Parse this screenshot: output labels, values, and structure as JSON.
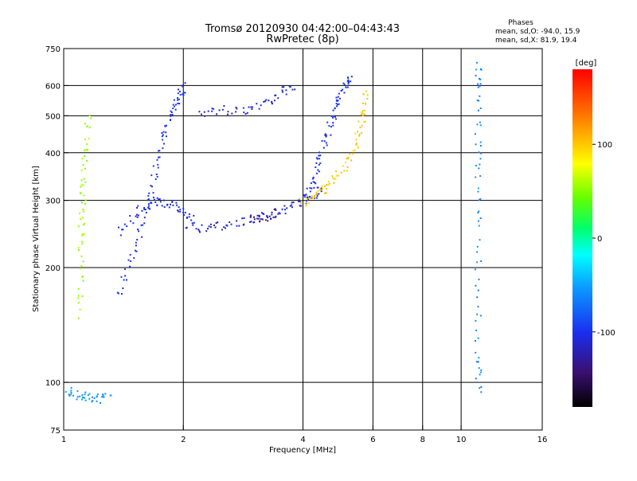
{
  "chart_data": {
    "type": "scatter",
    "title": "Tromsø 20120930 04:42:00–04:43:43",
    "subtitle": "RwPretec (8p)",
    "xlabel": "Frequency [MHz]",
    "ylabel": "Stationary phase Virtual Height [km]",
    "x_scale": "log",
    "y_scale": "log",
    "xlim": [
      1,
      16
    ],
    "ylim": [
      75,
      750
    ],
    "x_ticks": [
      1,
      2,
      4,
      6,
      8,
      10,
      16
    ],
    "x_tick_labels": [
      "1",
      "2",
      "4",
      "6",
      "8",
      "10",
      "16"
    ],
    "y_ticks": [
      75,
      100,
      200,
      300,
      400,
      500,
      600,
      750
    ],
    "y_tick_labels": [
      "75",
      "100",
      "200",
      "300",
      "400",
      "500",
      "600",
      "750"
    ],
    "grid": true,
    "stats": {
      "heading": "Phases",
      "line_o": "mean, sd,O:  -94.0, 15.9",
      "line_x": "mean, sd,X:  81.9, 19.4"
    },
    "colorbar": {
      "label": "[deg]",
      "range": [
        -180,
        180
      ],
      "ticks": [
        100,
        0,
        -100
      ],
      "tick_labels": [
        "100",
        "0",
        "-100"
      ]
    },
    "series": [
      {
        "traces": [
          {
            "x": [
              1.36,
              1.45,
              1.55,
              1.63,
              1.7,
              1.76,
              1.82,
              1.88,
              1.94,
              2.02
            ],
            "y": [
              170,
              205,
              245,
              300,
              360,
              420,
              480,
              530,
              570,
              600
            ],
            "phase": -100
          },
          {
            "x": [
              1.38,
              1.5,
              1.62,
              1.74,
              1.86,
              1.98,
              2.1
            ],
            "y": [
              250,
              275,
              295,
              300,
              292,
              282,
              270
            ],
            "phase": -105
          },
          {
            "x": [
              2.05,
              2.25,
              2.5,
              2.8,
              3.1,
              3.4,
              3.7,
              4.0,
              4.25,
              4.5
            ],
            "y": [
              260,
              255,
              258,
              265,
              272,
              280,
              290,
              300,
              312,
              325
            ],
            "phase": -108
          },
          {
            "x": [
              2.95,
              3.2,
              3.45
            ],
            "y": [
              268,
              272,
              278
            ],
            "phase": -135
          },
          {
            "x": [
              3.95,
              4.2,
              4.45,
              4.75,
              5.05,
              5.35,
              5.55,
              5.68,
              5.75
            ],
            "y": [
              295,
              305,
              320,
              340,
              370,
              410,
              460,
              520,
              580
            ],
            "phase": 100
          },
          {
            "x": [
              2.15,
              2.5,
              2.85,
              3.2,
              3.5,
              3.8
            ],
            "y": [
              510,
              520,
              520,
              545,
              575,
              600
            ],
            "phase": -110
          },
          {
            "x": [
              4.05,
              4.2,
              4.35,
              4.5,
              4.65,
              4.8,
              4.95,
              5.1,
              5.25
            ],
            "y": [
              300,
              335,
              375,
              420,
              470,
              520,
              570,
              610,
              640
            ],
            "phase": -100
          },
          {
            "x": [
              1.02,
              1.08,
              1.15,
              1.22,
              1.3
            ],
            "y": [
              96,
              93,
              92,
              91,
              92
            ],
            "phase": -55
          },
          {
            "x": [
              1.1,
              1.1,
              1.1,
              1.11,
              1.12,
              1.13,
              1.15
            ],
            "y": [
              150,
              200,
              250,
              300,
              350,
              420,
              520
            ],
            "phase": 55
          },
          {
            "x": [
              11.0,
              11.0,
              11.0,
              11.0,
              11.0,
              11.0,
              11.0,
              11.0
            ],
            "y": [
              95,
              115,
              165,
              255,
              350,
              450,
              600,
              690
            ],
            "phase": -60
          }
        ]
      }
    ]
  }
}
